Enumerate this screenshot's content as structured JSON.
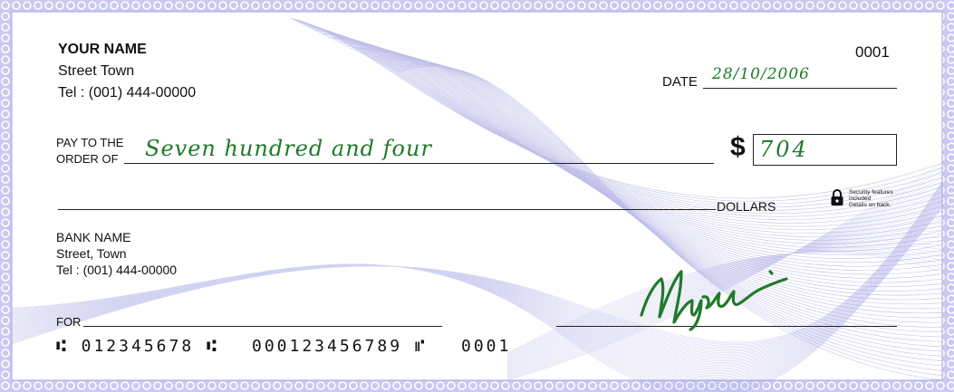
{
  "payer": {
    "name": "YOUR NAME",
    "street": "Street Town",
    "phone": "Tel : (001) 444-00000"
  },
  "cheque_number": "0001",
  "date": {
    "label": "DATE",
    "value": "28/10/2006"
  },
  "payee": {
    "label_line1": "PAY TO THE",
    "label_line2": "ORDER OF",
    "written_amount": "Seven hundred and four"
  },
  "amount": {
    "currency_symbol": "$",
    "value": "704",
    "dollars_label": "DOLLARS"
  },
  "security": {
    "icon": "lock-icon",
    "text_line1": "Security features",
    "text_line2": "included",
    "text_line3": "Details on back."
  },
  "bank": {
    "name": "BANK NAME",
    "street": "Street, Town",
    "phone": "Tel : (001) 444-00000"
  },
  "memo": {
    "label": "FOR"
  },
  "signature": {
    "text": "Mujtaba"
  },
  "micr": {
    "routing": "⑆ 012345678 ⑆",
    "account": "000123456789 ⑈",
    "check": "0001"
  },
  "colors": {
    "border": "#a9a9e6",
    "guilloche": "#8a8ad8",
    "handwriting": "#1f7a2a",
    "ink": "#111111"
  }
}
